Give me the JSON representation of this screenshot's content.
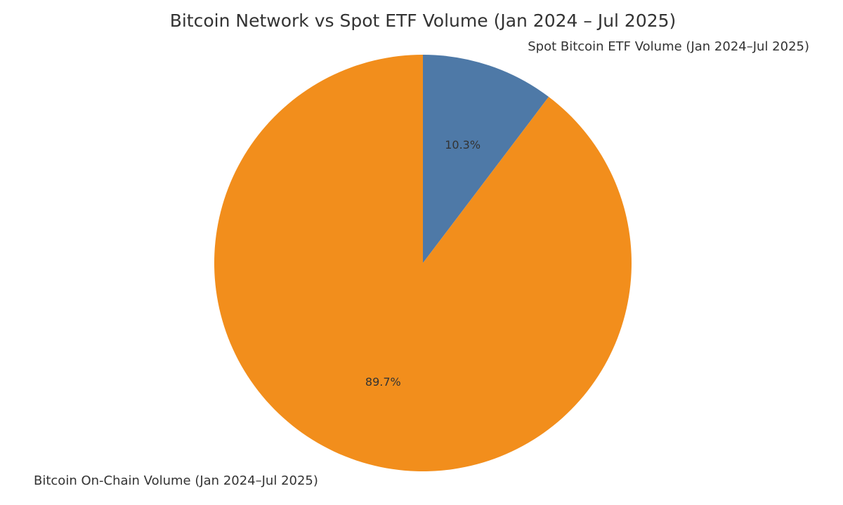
{
  "chart_data": {
    "type": "pie",
    "title": "Bitcoin Network vs Spot ETF Volume (Jan 2024 – Jul 2025)",
    "slices": [
      {
        "label": "Spot Bitcoin ETF Volume (Jan 2024–Jul 2025)",
        "value": 10.3,
        "percent_label": "10.3%",
        "color": "#4e79a7"
      },
      {
        "label": "Bitcoin On-Chain Volume (Jan 2024–Jul 2025)",
        "value": 89.7,
        "percent_label": "89.7%",
        "color": "#f28e1c"
      }
    ],
    "start_angle": "12 o'clock",
    "direction": "clockwise"
  }
}
